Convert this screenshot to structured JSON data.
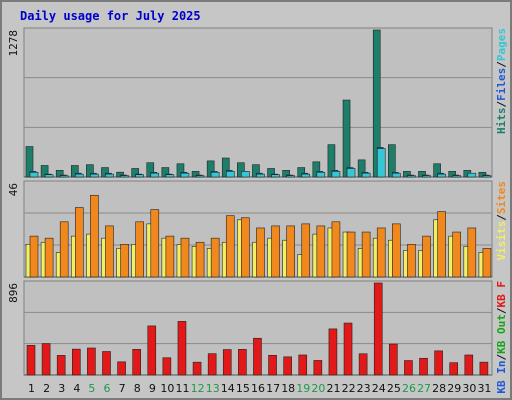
{
  "title": "Daily usage for July 2025",
  "colors": {
    "pages": "#36c7d5",
    "files": "#1d7f6a",
    "visits": "#f3ef62",
    "sites": "#f0881e",
    "kbytes": "#e31818",
    "weekend_label": "#1f9a4a",
    "weekday_label": "#111111",
    "grid_bg": "#c0c0c0"
  },
  "chart_data": [
    {
      "type": "bar",
      "name": "hits-files-pages",
      "max_label": "1278",
      "ylim": [
        0,
        1278
      ],
      "grid": true,
      "categories": [
        "1",
        "2",
        "3",
        "4",
        "5",
        "6",
        "7",
        "8",
        "9",
        "10",
        "11",
        "12",
        "13",
        "14",
        "15",
        "16",
        "17",
        "18",
        "19",
        "20",
        "21",
        "22",
        "23",
        "24",
        "25",
        "26",
        "27",
        "28",
        "29",
        "30",
        "31"
      ],
      "weekend_days": [
        "5",
        "6",
        "12",
        "13",
        "19",
        "20",
        "26",
        "27"
      ],
      "legend": [
        {
          "label": "Hits",
          "color": "#1d7f6a"
        },
        {
          "label": "Files",
          "color": "#1e5ad6"
        },
        {
          "label": "Pages",
          "color": "#36c7d5"
        }
      ],
      "series": [
        {
          "name": "Hits",
          "values": [
            265,
            100,
            58,
            100,
            107,
            82,
            42,
            74,
            124,
            82,
            115,
            49,
            140,
            165,
            124,
            107,
            74,
            58,
            82,
            132,
            281,
            669,
            149,
            1278,
            281,
            49,
            49,
            115,
            49,
            58,
            41
          ]
        },
        {
          "name": "Files",
          "values": [
            49,
            25,
            17,
            33,
            33,
            33,
            17,
            25,
            41,
            25,
            41,
            17,
            49,
            58,
            49,
            33,
            25,
            17,
            33,
            49,
            58,
            82,
            41,
            257,
            41,
            17,
            17,
            33,
            17,
            25,
            17
          ]
        },
        {
          "name": "Pages",
          "values": [
            41,
            20,
            12,
            25,
            25,
            25,
            12,
            20,
            33,
            20,
            33,
            12,
            41,
            49,
            49,
            25,
            20,
            12,
            25,
            41,
            49,
            74,
            33,
            247,
            33,
            12,
            12,
            25,
            12,
            33,
            12
          ]
        }
      ]
    },
    {
      "type": "bar",
      "name": "visits-sites",
      "max_label": "46",
      "ylim": [
        0,
        46
      ],
      "grid": true,
      "legend": [
        {
          "label": "Visits",
          "color": "#f3ef62"
        },
        {
          "label": "Sites",
          "color": "#f0881e"
        }
      ],
      "series": [
        {
          "name": "Visits",
          "values": [
            16,
            17,
            12,
            20,
            21,
            19,
            14,
            16,
            26,
            19,
            16,
            15,
            14,
            17,
            28,
            17,
            19,
            18,
            11,
            21,
            24,
            22,
            14,
            19,
            18,
            13,
            13,
            28,
            20,
            15,
            12
          ]
        },
        {
          "name": "Sites",
          "values": [
            20,
            19,
            27,
            34,
            40,
            25,
            16,
            27,
            33,
            20,
            19,
            17,
            19,
            30,
            29,
            24,
            25,
            25,
            26,
            25,
            27,
            22,
            22,
            24,
            26,
            16,
            20,
            32,
            22,
            24,
            14
          ]
        }
      ]
    },
    {
      "type": "bar",
      "name": "kbytes",
      "max_label": "896",
      "ylim": [
        0,
        896
      ],
      "grid": true,
      "legend": [
        {
          "label": "KB In",
          "color": "#1e5ad6"
        },
        {
          "label": "KB Out",
          "color": "#14a614"
        },
        {
          "label": "KB F",
          "color": "#e31818"
        }
      ],
      "series": [
        {
          "name": "KB F",
          "values": [
            289,
            306,
            191,
            252,
            263,
            229,
            128,
            250,
            478,
            168,
            522,
            125,
            208,
            248,
            250,
            358,
            192,
            177,
            195,
            142,
            449,
            506,
            207,
            896,
            301,
            141,
            163,
            235,
            120,
            195,
            125
          ]
        }
      ]
    }
  ],
  "legend_separator": "/"
}
